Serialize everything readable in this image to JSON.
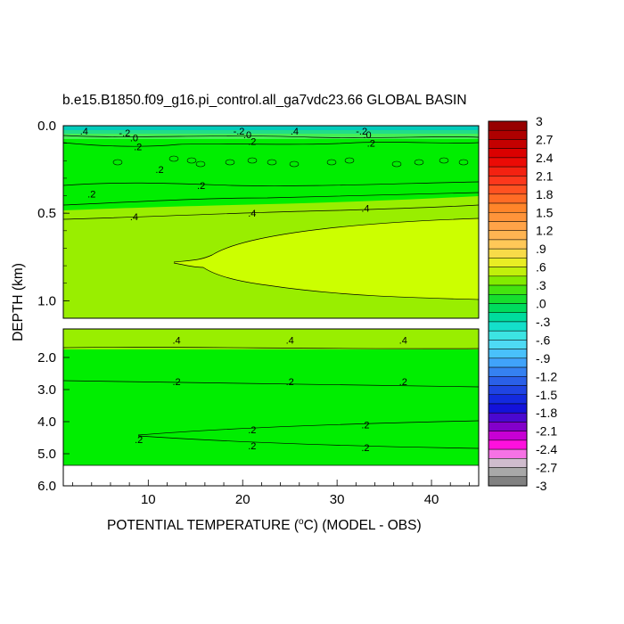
{
  "chart_data": {
    "type": "heatmap",
    "title": "b.e15.B1850.f09_g16.pi_control.all_ga7vdc23.66 GLOBAL BASIN",
    "xlabel": "POTENTIAL TEMPERATURE (",
    "xlabel_unit_sup": "o",
    "xlabel_unit_rest": "C) (MODEL - OBS)",
    "ylabel": "DEPTH (km)",
    "x_ticks": [
      "10",
      "20",
      "30",
      "40"
    ],
    "x_tick_values": [
      10,
      20,
      30,
      40
    ],
    "x_range": [
      1,
      45
    ],
    "y_ticks_upper": [
      "0.0",
      "0.5",
      "1.0"
    ],
    "y_tick_values_upper": [
      0.0,
      0.5,
      1.0
    ],
    "y_range_upper": [
      0.0,
      1.1
    ],
    "y_ticks_lower": [
      "2.0",
      "3.0",
      "4.0",
      "5.0",
      "6.0"
    ],
    "y_tick_values_lower": [
      2.0,
      3.0,
      4.0,
      5.0,
      6.0
    ],
    "y_range_lower": [
      1.1,
      6.0
    ],
    "colorbar_labels": [
      "3",
      "2.7",
      "2.4",
      "2.1",
      "1.8",
      "1.5",
      "1.2",
      ".9",
      ".6",
      ".3",
      ".0",
      "-.3",
      "-.6",
      "-.9",
      "-1.2",
      "-1.5",
      "-1.8",
      "-2.1",
      "-2.4",
      "-2.7",
      "-3"
    ],
    "colorbar_range": [
      -3,
      3
    ],
    "colorbar_step": 0.15,
    "contour_labels": [
      {
        "text": ".4",
        "x": 3.2,
        "y": 0.03,
        "panel": "upper"
      },
      {
        "text": "-.2",
        "x": 7.5,
        "y": 0.04,
        "panel": "upper"
      },
      {
        "text": ".0",
        "x": 8.5,
        "y": 0.07,
        "panel": "upper"
      },
      {
        "text": ".2",
        "x": 8.9,
        "y": 0.12,
        "panel": "upper"
      },
      {
        "text": ".2",
        "x": 11.2,
        "y": 0.25,
        "panel": "upper"
      },
      {
        "text": "-.2",
        "x": 19.6,
        "y": 0.03,
        "panel": "upper"
      },
      {
        "text": ".0",
        "x": 20.5,
        "y": 0.05,
        "panel": "upper"
      },
      {
        "text": ".2",
        "x": 21.0,
        "y": 0.09,
        "panel": "upper"
      },
      {
        "text": ".4",
        "x": 25.5,
        "y": 0.03,
        "panel": "upper"
      },
      {
        "text": "-.2",
        "x": 32.6,
        "y": 0.03,
        "panel": "upper"
      },
      {
        "text": ".0",
        "x": 33.2,
        "y": 0.05,
        "panel": "upper"
      },
      {
        "text": ".2",
        "x": 33.6,
        "y": 0.1,
        "panel": "upper"
      },
      {
        "text": ".2",
        "x": 15.6,
        "y": 0.34,
        "panel": "upper"
      },
      {
        "text": ".2",
        "x": 4.0,
        "y": 0.39,
        "panel": "upper"
      },
      {
        "text": ".4",
        "x": 8.5,
        "y": 0.52,
        "panel": "upper"
      },
      {
        "text": ".4",
        "x": 21.0,
        "y": 0.5,
        "panel": "upper"
      },
      {
        "text": ".4",
        "x": 33.0,
        "y": 0.47,
        "panel": "upper"
      },
      {
        "text": ".4",
        "x": 13.0,
        "y": 1.45,
        "panel": "lower"
      },
      {
        "text": ".4",
        "x": 25.0,
        "y": 1.45,
        "panel": "lower"
      },
      {
        "text": ".4",
        "x": 37.0,
        "y": 1.45,
        "panel": "lower"
      },
      {
        "text": ".2",
        "x": 13.0,
        "y": 2.75,
        "panel": "lower"
      },
      {
        "text": ".2",
        "x": 25.0,
        "y": 2.75,
        "panel": "lower"
      },
      {
        "text": ".2",
        "x": 37.0,
        "y": 2.75,
        "panel": "lower"
      },
      {
        "text": ".2",
        "x": 21.0,
        "y": 4.25,
        "panel": "lower"
      },
      {
        "text": ".2",
        "x": 33.0,
        "y": 4.1,
        "panel": "lower"
      },
      {
        "text": ".2",
        "x": 9.0,
        "y": 4.55,
        "panel": "lower"
      },
      {
        "text": ".2",
        "x": 21.0,
        "y": 4.75,
        "panel": "lower"
      },
      {
        "text": ".2",
        "x": 33.0,
        "y": 4.8,
        "panel": "lower"
      }
    ],
    "colors": {
      "zone_0_2": "#66ff00",
      "zone_2_4": "#00ee00",
      "zone_4_6": "#99ee00",
      "zone_6_75": "#ccff00",
      "missing": "#ffffff"
    }
  }
}
